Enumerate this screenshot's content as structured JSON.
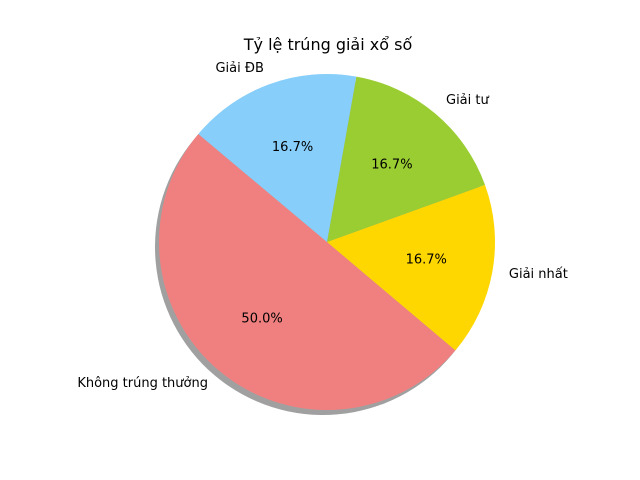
{
  "chart_data": {
    "type": "pie",
    "title": "Tỷ lệ trúng giải xổ số",
    "start_angle_deg": 140,
    "direction": "counterclockwise",
    "shadow": true,
    "slices": [
      {
        "label": "Không trúng thưởng",
        "value": 50.0,
        "percent_label": "50.0%",
        "color": "#F08080"
      },
      {
        "label": "Giải nhất",
        "value": 16.7,
        "percent_label": "16.7%",
        "color": "#FFD700"
      },
      {
        "label": "Giải tư",
        "value": 16.7,
        "percent_label": "16.7%",
        "color": "#9ACD32"
      },
      {
        "label": "Giải ĐB",
        "value": 16.7,
        "percent_label": "16.7%",
        "color": "#87CEFA"
      }
    ]
  }
}
